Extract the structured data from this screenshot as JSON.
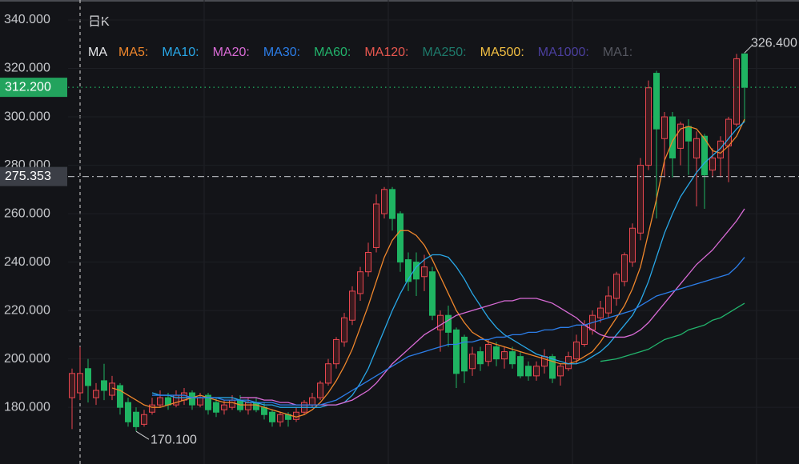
{
  "chart_data": {
    "type": "candlestick",
    "period_label": "日K",
    "legend_prefix": "MA",
    "ylim": [
      156.6,
      348.26
    ],
    "yticks": [
      {
        "value": 180,
        "label": "180.000"
      },
      {
        "value": 200,
        "label": "200.000"
      },
      {
        "value": 220,
        "label": "220.000"
      },
      {
        "value": 240,
        "label": "240.000"
      },
      {
        "value": 260,
        "label": "260.000"
      },
      {
        "value": 280,
        "label": "280.000"
      },
      {
        "value": 300,
        "label": "300.000"
      },
      {
        "value": 320,
        "label": "320.000"
      },
      {
        "value": 340,
        "label": "340.000"
      }
    ],
    "grid": true,
    "up_color": "#e8464f",
    "down_color": "#1fb462",
    "open": [
      184,
      186,
      196,
      184,
      191,
      185,
      189,
      182,
      178,
      173,
      178,
      181,
      184,
      181,
      183,
      186,
      181,
      185,
      182,
      179,
      180,
      183,
      179,
      182,
      180,
      178,
      174,
      177,
      175,
      178,
      181,
      184,
      190,
      198,
      207,
      216,
      227,
      236,
      246,
      260,
      270,
      260,
      241,
      240,
      234,
      236,
      212,
      218,
      212,
      209,
      196,
      203,
      199,
      205,
      200,
      203,
      201,
      197,
      193,
      197,
      201,
      193,
      196,
      200,
      206,
      212,
      217,
      219,
      225,
      232,
      240,
      252,
      280,
      318,
      291,
      300,
      287,
      296,
      283,
      292,
      278,
      283,
      288,
      297,
      326
    ],
    "high": [
      196,
      205,
      200,
      190,
      198,
      193,
      190,
      184,
      180,
      179,
      184,
      187,
      186,
      187,
      188,
      187,
      186,
      186,
      184,
      183,
      185,
      185,
      184,
      184,
      182,
      179,
      178,
      178,
      180,
      183,
      186,
      191,
      200,
      209,
      219,
      230,
      238,
      248,
      268,
      271,
      271,
      261,
      244,
      244,
      243,
      238,
      220,
      222,
      213,
      210,
      205,
      205,
      208,
      207,
      205,
      205,
      203,
      199,
      199,
      204,
      202,
      198,
      203,
      210,
      216,
      220,
      224,
      230,
      236,
      244,
      256,
      283,
      315,
      319,
      302,
      302,
      298,
      299,
      294,
      293,
      287,
      292,
      300,
      326,
      326.4
    ],
    "low": [
      171,
      183,
      182,
      181,
      183,
      183,
      177,
      172,
      170.1,
      172,
      177,
      180,
      179,
      180,
      181,
      179,
      180,
      177,
      176,
      177,
      179,
      178,
      177,
      178,
      175,
      172,
      172,
      172,
      174,
      177,
      180,
      183,
      189,
      196,
      205,
      214,
      224,
      234,
      244,
      258,
      253,
      236,
      228,
      226,
      228,
      216,
      203,
      205,
      188,
      190,
      193,
      195,
      197,
      197,
      196,
      196,
      192,
      191,
      191,
      194,
      190,
      189,
      195,
      198,
      205,
      210,
      215,
      217,
      222,
      230,
      238,
      249,
      278,
      258,
      275,
      275,
      280,
      276,
      263,
      262,
      275,
      275,
      273,
      296,
      298
    ],
    "close": [
      194,
      194,
      189,
      187,
      187,
      190,
      180,
      174,
      172,
      177,
      181,
      184,
      181,
      185,
      186,
      181,
      184,
      179,
      178,
      181,
      183,
      179,
      182,
      179,
      177,
      174,
      177,
      175,
      178,
      182,
      184,
      190,
      198,
      208,
      217,
      228,
      236,
      244,
      264,
      270,
      258,
      240,
      232,
      233,
      238,
      218,
      218,
      211,
      194,
      195,
      202,
      198,
      206,
      200,
      203,
      198,
      193,
      193,
      197,
      201,
      192,
      197,
      201,
      207,
      214,
      218,
      221,
      226,
      235,
      243,
      254,
      280,
      312,
      295,
      300,
      283,
      297,
      290,
      291,
      276,
      283,
      290,
      299,
      324,
      312.2
    ],
    "series": [
      {
        "name": "MA5:",
        "color": "#f0872c",
        "values": [
          null,
          null,
          null,
          null,
          null,
          188,
          187,
          185,
          183,
          181,
          180,
          180,
          181,
          182,
          183,
          184,
          185,
          184,
          183,
          182,
          182,
          181,
          181,
          181,
          180,
          179,
          178,
          177,
          176,
          177,
          179,
          182,
          186,
          191,
          197,
          204,
          213,
          222,
          232,
          242,
          249,
          253,
          253,
          251,
          247,
          241,
          234,
          227,
          220,
          215,
          211,
          209,
          207,
          206,
          205,
          204,
          203,
          202,
          201,
          200,
          199,
          198,
          198,
          199,
          201,
          203,
          207,
          212,
          217,
          222,
          229,
          238,
          252,
          266,
          282,
          290,
          295,
          296,
          295,
          291,
          286,
          285,
          288,
          292,
          299
        ]
      },
      {
        "name": "MA10:",
        "color": "#29a8e8",
        "values": [
          null,
          null,
          null,
          null,
          null,
          null,
          null,
          null,
          null,
          null,
          186,
          185,
          185,
          184,
          184,
          184,
          184,
          184,
          184,
          184,
          184,
          183,
          182,
          182,
          181,
          181,
          180,
          180,
          180,
          180,
          180,
          180,
          181,
          181,
          182,
          185,
          190,
          196,
          204,
          212,
          220,
          227,
          233,
          238,
          241,
          243,
          243,
          242,
          238,
          233,
          227,
          222,
          217,
          213,
          210,
          208,
          206,
          204,
          202,
          201,
          200,
          199,
          198,
          198,
          199,
          201,
          203,
          206,
          210,
          214,
          218,
          224,
          232,
          242,
          252,
          260,
          267,
          272,
          277,
          281,
          284,
          287,
          291,
          295,
          298
        ]
      },
      {
        "name": "MA20:",
        "color": "#d96bd6",
        "values": [
          null,
          null,
          null,
          null,
          null,
          null,
          null,
          null,
          null,
          null,
          null,
          null,
          null,
          null,
          null,
          null,
          null,
          null,
          null,
          null,
          null,
          184,
          184,
          184,
          183,
          183,
          182,
          182,
          181,
          181,
          181,
          181,
          181,
          181,
          182,
          183,
          185,
          187,
          190,
          194,
          198,
          201,
          204,
          207,
          210,
          212,
          214,
          216,
          218,
          219,
          220,
          221,
          222,
          223,
          224,
          224,
          225,
          225,
          225,
          224,
          223,
          221,
          219,
          217,
          214,
          212,
          210,
          209,
          209,
          209,
          210,
          212,
          215,
          219,
          223,
          227,
          231,
          235,
          239,
          242,
          245,
          249,
          253,
          257,
          262
        ]
      },
      {
        "name": "MA30:",
        "color": "#2c7ee9",
        "values": [
          null,
          null,
          null,
          null,
          null,
          null,
          null,
          null,
          null,
          null,
          185,
          185,
          185,
          185,
          185,
          184,
          184,
          184,
          184,
          183,
          183,
          183,
          183,
          182,
          182,
          182,
          181,
          181,
          181,
          181,
          181,
          181,
          182,
          183,
          185,
          187,
          189,
          191,
          193,
          195,
          197,
          199,
          201,
          202,
          203,
          204,
          205,
          206,
          206,
          207,
          207,
          208,
          208,
          209,
          209,
          210,
          210,
          211,
          211,
          212,
          212,
          213,
          213,
          214,
          214,
          215,
          216,
          217,
          218,
          219,
          220,
          222,
          224,
          226,
          227,
          228,
          229,
          230,
          231,
          232,
          233,
          234,
          235,
          238,
          242
        ]
      },
      {
        "name": "MA60:",
        "color": "#22b46c",
        "values": [
          null,
          null,
          null,
          null,
          null,
          null,
          null,
          null,
          null,
          null,
          null,
          null,
          null,
          null,
          null,
          null,
          null,
          null,
          null,
          null,
          null,
          null,
          null,
          null,
          null,
          null,
          null,
          null,
          null,
          null,
          null,
          null,
          null,
          null,
          null,
          null,
          null,
          null,
          null,
          null,
          null,
          null,
          null,
          null,
          null,
          null,
          null,
          null,
          null,
          null,
          null,
          null,
          null,
          null,
          null,
          null,
          null,
          null,
          null,
          null,
          null,
          null,
          null,
          null,
          null,
          null,
          199,
          199.5,
          200,
          201,
          202,
          203,
          204,
          206,
          208,
          209,
          210,
          212,
          213,
          214,
          216,
          217,
          219,
          221,
          223
        ]
      }
    ],
    "legend_only": [
      {
        "name": "MA120:",
        "color": "#e8574f"
      },
      {
        "name": "MA250:",
        "color": "#1e7a6b"
      },
      {
        "name": "MA500:",
        "color": "#f3c043"
      },
      {
        "name": "MA1000:",
        "color": "#4b3f9e"
      },
      {
        "name": "MA1:",
        "color": "#555760"
      }
    ],
    "last_price": {
      "value": 312.2,
      "label": "312.200"
    },
    "crosshair_price": {
      "value": 275.353,
      "label": "275.353"
    },
    "high_annotation": {
      "value": 326.4,
      "label": "326.400"
    },
    "low_annotation": {
      "value": 170.1,
      "label": "170.100"
    }
  }
}
